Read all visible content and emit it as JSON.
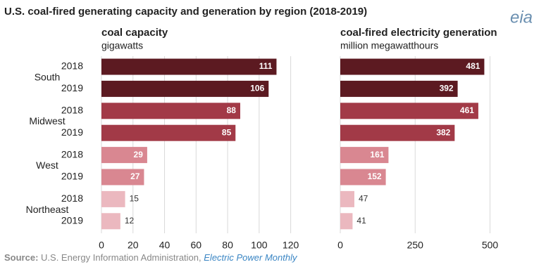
{
  "title": "U.S. coal-fired generating capacity and generation by region (2018-2019)",
  "logo": "eia",
  "source": {
    "label": "Source:",
    "text": "U.S. Energy Information Administration,",
    "link": "Electric Power Monthly"
  },
  "chart_data": [
    {
      "type": "bar",
      "orientation": "horizontal",
      "title": "coal capacity",
      "subtitle": "gigawatts",
      "groups": [
        "South",
        "Midwest",
        "West",
        "Northeast"
      ],
      "categories": [
        "2018",
        "2019",
        "2018",
        "2019",
        "2018",
        "2019",
        "2018",
        "2019"
      ],
      "values": [
        111,
        106,
        88,
        85,
        29,
        27,
        15,
        12
      ],
      "colors": [
        "#5c1a21",
        "#5c1a21",
        "#a23a47",
        "#a23a47",
        "#d98791",
        "#d98791",
        "#ebb8bf",
        "#ebb8bf"
      ],
      "xlim": [
        0,
        130
      ],
      "xticks": [
        0,
        20,
        40,
        60,
        80,
        100,
        120
      ],
      "grid": true
    },
    {
      "type": "bar",
      "orientation": "horizontal",
      "title": "coal-fired electricity generation",
      "subtitle": "million megawatthours",
      "categories": [
        "2018",
        "2019",
        "2018",
        "2019",
        "2018",
        "2019",
        "2018",
        "2019"
      ],
      "values": [
        481,
        392,
        461,
        382,
        161,
        152,
        47,
        41
      ],
      "colors": [
        "#5c1a21",
        "#5c1a21",
        "#a23a47",
        "#a23a47",
        "#d98791",
        "#d98791",
        "#ebb8bf",
        "#ebb8bf"
      ],
      "xlim": [
        0,
        520
      ],
      "xticks": [
        0,
        250,
        500
      ],
      "grid": true
    }
  ]
}
